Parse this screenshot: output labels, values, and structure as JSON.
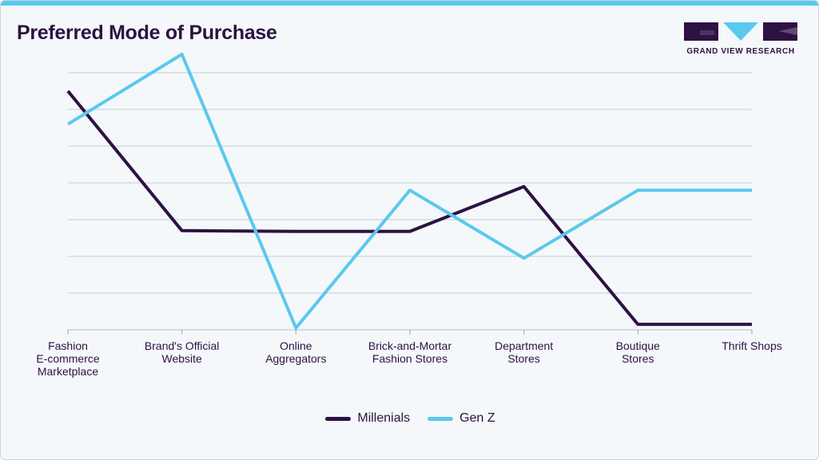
{
  "header": {
    "title": "Preferred Mode of Purchase",
    "brand": "GRAND VIEW RESEARCH"
  },
  "colors": {
    "accent": "#5bc8ef",
    "millenials": "#2e1143",
    "genz": "#5bc8ef",
    "grid": "#c4ccd0"
  },
  "chart_data": {
    "type": "line",
    "title": "Preferred Mode of Purchase",
    "xlabel": "",
    "ylabel": "",
    "grid": true,
    "legend_position": "bottom-center",
    "ylim": [
      0,
      7
    ],
    "categories": [
      "Fashion\nE-commerce\nMarketplace",
      "Brand's Official\nWebsite",
      "Online\nAggregators",
      "Brick-and-Mortar\nFashion Stores",
      "Department\nStores",
      "Boutique\nStores",
      "Thrift Shops"
    ],
    "series": [
      {
        "name": "Millenials",
        "values": [
          6.5,
          2.7,
          2.68,
          2.68,
          3.9,
          0.15,
          0.15
        ]
      },
      {
        "name": "Gen Z",
        "values": [
          5.6,
          7.5,
          0.05,
          3.8,
          1.95,
          3.8,
          3.8
        ]
      }
    ]
  }
}
